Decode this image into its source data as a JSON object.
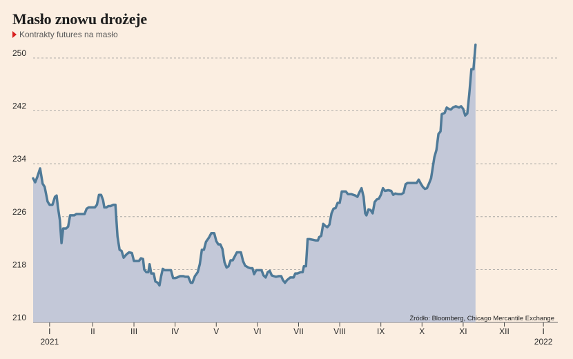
{
  "title": "Masło znowu drożeje",
  "subtitle": "Kontrakty futures na masło",
  "source": "Źródło: Bloomberg, Chicago Mercantile Exchange",
  "colors": {
    "background": "#fbeee1",
    "line": "#4f7a98",
    "area": "#c3c8d8",
    "grid": "#9a9a9a",
    "subtitle_marker": "#d81e1e"
  },
  "chart_data": {
    "type": "area",
    "title": "Masło znowu drożeje",
    "subtitle": "Kontrakty futures na masło",
    "xlabel": "",
    "ylabel": "",
    "ylim": [
      210,
      252
    ],
    "yticks": [
      210,
      218,
      226,
      234,
      242,
      250
    ],
    "grid": true,
    "x_ticks": [
      {
        "label": "I",
        "x": 0.95
      },
      {
        "label": "II",
        "x": 2.0
      },
      {
        "label": "III",
        "x": 3.0
      },
      {
        "label": "IV",
        "x": 4.0
      },
      {
        "label": "V",
        "x": 5.0
      },
      {
        "label": "VI",
        "x": 6.0
      },
      {
        "label": "VII",
        "x": 7.0
      },
      {
        "label": "VIII",
        "x": 8.0
      },
      {
        "label": "IX",
        "x": 9.0
      },
      {
        "label": "X",
        "x": 10.0
      },
      {
        "label": "XI",
        "x": 11.0
      },
      {
        "label": "XII",
        "x": 12.0
      },
      {
        "label": "I",
        "x": 12.95
      }
    ],
    "year_labels": [
      {
        "label": "2021",
        "x": 0.95
      },
      {
        "label": "2022",
        "x": 12.95
      }
    ],
    "xlim": [
      0.55,
      13.3
    ],
    "series": [
      {
        "values": [
          [
            0.55,
            231.8
          ],
          [
            0.6,
            231.2
          ],
          [
            0.65,
            232.0
          ],
          [
            0.72,
            233.3
          ],
          [
            0.78,
            231.0
          ],
          [
            0.83,
            230.5
          ],
          [
            0.9,
            228.3
          ],
          [
            0.95,
            227.8
          ],
          [
            1.02,
            227.8
          ],
          [
            1.08,
            229.0
          ],
          [
            1.12,
            229.2
          ],
          [
            1.15,
            227.5
          ],
          [
            1.2,
            225.5
          ],
          [
            1.24,
            222.0
          ],
          [
            1.28,
            224.2
          ],
          [
            1.35,
            224.2
          ],
          [
            1.4,
            224.5
          ],
          [
            1.45,
            226.2
          ],
          [
            1.55,
            226.2
          ],
          [
            1.6,
            226.4
          ],
          [
            1.8,
            226.4
          ],
          [
            1.85,
            227.2
          ],
          [
            1.9,
            227.4
          ],
          [
            2.05,
            227.4
          ],
          [
            2.1,
            227.8
          ],
          [
            2.15,
            229.3
          ],
          [
            2.2,
            229.3
          ],
          [
            2.25,
            228.5
          ],
          [
            2.28,
            227.4
          ],
          [
            2.33,
            227.4
          ],
          [
            2.38,
            227.6
          ],
          [
            2.43,
            227.6
          ],
          [
            2.5,
            227.8
          ],
          [
            2.55,
            227.8
          ],
          [
            2.6,
            223.0
          ],
          [
            2.65,
            221.0
          ],
          [
            2.7,
            220.8
          ],
          [
            2.75,
            219.8
          ],
          [
            2.82,
            220.3
          ],
          [
            2.88,
            220.6
          ],
          [
            2.95,
            220.5
          ],
          [
            3.0,
            219.3
          ],
          [
            3.08,
            219.3
          ],
          [
            3.12,
            219.3
          ],
          [
            3.17,
            219.7
          ],
          [
            3.22,
            219.6
          ],
          [
            3.25,
            218.0
          ],
          [
            3.3,
            217.6
          ],
          [
            3.35,
            217.6
          ],
          [
            3.38,
            218.8
          ],
          [
            3.42,
            217.4
          ],
          [
            3.48,
            217.4
          ],
          [
            3.52,
            216.2
          ],
          [
            3.58,
            216.0
          ],
          [
            3.62,
            215.6
          ],
          [
            3.66,
            217.0
          ],
          [
            3.7,
            218.1
          ],
          [
            3.75,
            217.9
          ],
          [
            3.85,
            217.9
          ],
          [
            3.9,
            217.9
          ],
          [
            3.95,
            216.7
          ],
          [
            4.0,
            216.7
          ],
          [
            4.05,
            216.8
          ],
          [
            4.12,
            217.0
          ],
          [
            4.2,
            217.0
          ],
          [
            4.25,
            216.9
          ],
          [
            4.32,
            216.9
          ],
          [
            4.38,
            216.0
          ],
          [
            4.42,
            216.0
          ],
          [
            4.48,
            217.0
          ],
          [
            4.55,
            217.6
          ],
          [
            4.6,
            218.8
          ],
          [
            4.65,
            221.0
          ],
          [
            4.7,
            221.0
          ],
          [
            4.75,
            222.2
          ],
          [
            4.82,
            222.8
          ],
          [
            4.88,
            223.5
          ],
          [
            4.95,
            223.5
          ],
          [
            5.0,
            222.3
          ],
          [
            5.05,
            221.8
          ],
          [
            5.1,
            221.8
          ],
          [
            5.15,
            221.1
          ],
          [
            5.2,
            219.1
          ],
          [
            5.25,
            218.3
          ],
          [
            5.3,
            218.5
          ],
          [
            5.35,
            219.4
          ],
          [
            5.4,
            219.4
          ],
          [
            5.45,
            220.0
          ],
          [
            5.5,
            220.6
          ],
          [
            5.6,
            220.6
          ],
          [
            5.65,
            219.3
          ],
          [
            5.7,
            218.6
          ],
          [
            5.78,
            218.3
          ],
          [
            5.83,
            218.2
          ],
          [
            5.88,
            218.2
          ],
          [
            5.92,
            217.3
          ],
          [
            5.97,
            217.9
          ],
          [
            6.05,
            217.9
          ],
          [
            6.1,
            217.9
          ],
          [
            6.15,
            217.1
          ],
          [
            6.2,
            216.8
          ],
          [
            6.25,
            217.6
          ],
          [
            6.3,
            217.8
          ],
          [
            6.35,
            217.1
          ],
          [
            6.4,
            217.0
          ],
          [
            6.45,
            216.9
          ],
          [
            6.52,
            217.0
          ],
          [
            6.58,
            217.0
          ],
          [
            6.62,
            216.4
          ],
          [
            6.67,
            216.0
          ],
          [
            6.72,
            216.4
          ],
          [
            6.8,
            216.8
          ],
          [
            6.88,
            216.8
          ],
          [
            6.92,
            217.4
          ],
          [
            6.97,
            217.4
          ],
          [
            7.05,
            217.6
          ],
          [
            7.1,
            217.6
          ],
          [
            7.13,
            218.5
          ],
          [
            7.18,
            218.5
          ],
          [
            7.22,
            222.6
          ],
          [
            7.27,
            222.6
          ],
          [
            7.35,
            222.5
          ],
          [
            7.42,
            222.4
          ],
          [
            7.47,
            222.4
          ],
          [
            7.5,
            222.9
          ],
          [
            7.55,
            223.1
          ],
          [
            7.6,
            224.9
          ],
          [
            7.65,
            224.6
          ],
          [
            7.7,
            224.4
          ],
          [
            7.75,
            224.8
          ],
          [
            7.8,
            226.5
          ],
          [
            7.85,
            227.2
          ],
          [
            7.9,
            227.3
          ],
          [
            7.95,
            228.1
          ],
          [
            8.0,
            228.1
          ],
          [
            8.05,
            229.8
          ],
          [
            8.1,
            229.8
          ],
          [
            8.15,
            229.8
          ],
          [
            8.2,
            229.4
          ],
          [
            8.28,
            229.4
          ],
          [
            8.33,
            229.3
          ],
          [
            8.38,
            229.2
          ],
          [
            8.43,
            229.0
          ],
          [
            8.48,
            229.7
          ],
          [
            8.53,
            230.3
          ],
          [
            8.58,
            229.0
          ],
          [
            8.62,
            226.5
          ],
          [
            8.65,
            226.2
          ],
          [
            8.7,
            227.1
          ],
          [
            8.75,
            227.0
          ],
          [
            8.8,
            226.5
          ],
          [
            8.85,
            228.2
          ],
          [
            8.9,
            228.6
          ],
          [
            8.95,
            228.7
          ],
          [
            9.0,
            229.3
          ],
          [
            9.05,
            230.3
          ],
          [
            9.1,
            229.9
          ],
          [
            9.18,
            230.0
          ],
          [
            9.25,
            229.9
          ],
          [
            9.3,
            229.3
          ],
          [
            9.35,
            229.5
          ],
          [
            9.42,
            229.4
          ],
          [
            9.5,
            229.4
          ],
          [
            9.55,
            229.6
          ],
          [
            9.6,
            230.9
          ],
          [
            9.65,
            231.1
          ],
          [
            9.7,
            231.1
          ],
          [
            9.75,
            231.1
          ],
          [
            9.82,
            231.1
          ],
          [
            9.87,
            231.1
          ],
          [
            9.92,
            231.6
          ],
          [
            9.97,
            231.0
          ],
          [
            10.02,
            230.5
          ],
          [
            10.07,
            230.2
          ],
          [
            10.12,
            230.3
          ],
          [
            10.17,
            231.0
          ],
          [
            10.22,
            231.8
          ],
          [
            10.25,
            233.0
          ],
          [
            10.3,
            235.0
          ],
          [
            10.35,
            236.1
          ],
          [
            10.4,
            238.5
          ],
          [
            10.45,
            238.9
          ],
          [
            10.48,
            241.5
          ],
          [
            10.55,
            241.7
          ],
          [
            10.6,
            242.5
          ],
          [
            10.65,
            242.3
          ],
          [
            10.7,
            242.2
          ],
          [
            10.75,
            242.5
          ],
          [
            10.82,
            242.7
          ],
          [
            10.9,
            242.5
          ],
          [
            10.95,
            242.7
          ],
          [
            11.0,
            242.3
          ],
          [
            11.05,
            241.3
          ],
          [
            11.1,
            241.6
          ],
          [
            11.15,
            244.6
          ],
          [
            11.2,
            248.3
          ],
          [
            11.25,
            248.3
          ],
          [
            11.3,
            252.0
          ]
        ]
      }
    ]
  }
}
